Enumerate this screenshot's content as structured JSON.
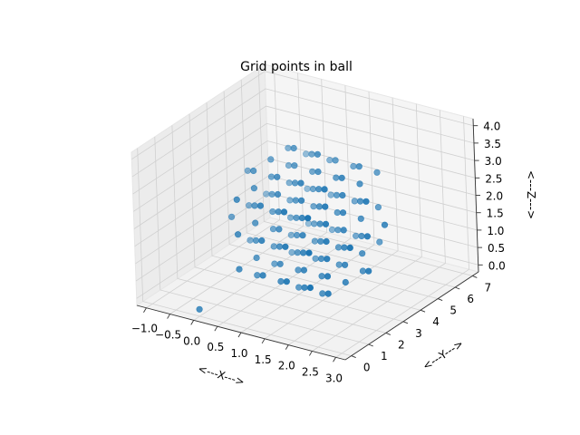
{
  "chart_data": {
    "type": "scatter",
    "projection": "3d",
    "title": "Grid points in ball",
    "xlabel": "<---X--->",
    "ylabel": "<---Y--->",
    "zlabel": "<---Z--->",
    "xlim": [
      -1.2,
      3.2
    ],
    "ylim": [
      -0.35,
      7.35
    ],
    "zlim": [
      -0.2,
      4.2
    ],
    "xticks": [
      "−1.0",
      "−0.5",
      "0.0",
      "0.5",
      "1.0",
      "1.5",
      "2.0",
      "2.5",
      "3.0"
    ],
    "yticks": [
      "0",
      "1",
      "2",
      "3",
      "4",
      "5",
      "6",
      "7"
    ],
    "zticks": [
      "0.0",
      "0.5",
      "1.0",
      "1.5",
      "2.0",
      "2.5",
      "3.0",
      "3.5",
      "4.0"
    ],
    "grid": true,
    "marker_color": "#1f77b4",
    "series": [
      {
        "points": [
          [
            0.0,
            0.0,
            0.0
          ],
          [
            0.0,
            2.0,
            2.0
          ],
          [
            0.0,
            3.0,
            1.0
          ],
          [
            0.0,
            3.0,
            2.0
          ],
          [
            0.0,
            3.0,
            3.0
          ],
          [
            0.0,
            4.0,
            2.0
          ],
          [
            0.5,
            1.0,
            1.0
          ],
          [
            0.5,
            1.0,
            2.0
          ],
          [
            0.5,
            1.0,
            3.0
          ],
          [
            0.5,
            2.0,
            0.5
          ],
          [
            0.5,
            2.0,
            1.0
          ],
          [
            0.5,
            2.0,
            1.5
          ],
          [
            0.5,
            2.0,
            2.0
          ],
          [
            0.5,
            2.0,
            2.5
          ],
          [
            0.5,
            2.0,
            3.0
          ],
          [
            0.5,
            2.0,
            3.5
          ],
          [
            0.5,
            3.0,
            0.5
          ],
          [
            0.5,
            3.0,
            1.0
          ],
          [
            0.5,
            3.0,
            1.5
          ],
          [
            0.5,
            3.0,
            2.0
          ],
          [
            0.5,
            3.0,
            2.5
          ],
          [
            0.5,
            3.0,
            3.0
          ],
          [
            0.5,
            3.0,
            3.5
          ],
          [
            0.5,
            4.0,
            0.5
          ],
          [
            0.5,
            4.0,
            1.0
          ],
          [
            0.5,
            4.0,
            1.5
          ],
          [
            0.5,
            4.0,
            2.0
          ],
          [
            0.5,
            4.0,
            2.5
          ],
          [
            0.5,
            4.0,
            3.0
          ],
          [
            0.5,
            4.0,
            3.5
          ],
          [
            0.5,
            5.0,
            1.0
          ],
          [
            0.5,
            5.0,
            2.0
          ],
          [
            0.5,
            5.0,
            3.0
          ],
          [
            1.0,
            1.0,
            1.0
          ],
          [
            1.0,
            1.0,
            2.0
          ],
          [
            1.0,
            1.0,
            3.0
          ],
          [
            1.0,
            2.0,
            0.5
          ],
          [
            1.0,
            2.0,
            1.0
          ],
          [
            1.0,
            2.0,
            1.5
          ],
          [
            1.0,
            2.0,
            2.0
          ],
          [
            1.0,
            2.0,
            2.5
          ],
          [
            1.0,
            2.0,
            3.0
          ],
          [
            1.0,
            2.0,
            3.5
          ],
          [
            1.0,
            3.0,
            0.0
          ],
          [
            1.0,
            3.0,
            0.5
          ],
          [
            1.0,
            3.0,
            1.0
          ],
          [
            1.0,
            3.0,
            1.5
          ],
          [
            1.0,
            3.0,
            2.0
          ],
          [
            1.0,
            3.0,
            2.5
          ],
          [
            1.0,
            3.0,
            3.0
          ],
          [
            1.0,
            3.0,
            3.5
          ],
          [
            1.0,
            3.0,
            4.0
          ],
          [
            1.0,
            4.0,
            0.5
          ],
          [
            1.0,
            4.0,
            1.0
          ],
          [
            1.0,
            4.0,
            1.5
          ],
          [
            1.0,
            4.0,
            2.0
          ],
          [
            1.0,
            4.0,
            2.5
          ],
          [
            1.0,
            4.0,
            3.0
          ],
          [
            1.0,
            4.0,
            3.5
          ],
          [
            1.0,
            5.0,
            1.0
          ],
          [
            1.0,
            5.0,
            2.0
          ],
          [
            1.0,
            5.0,
            3.0
          ],
          [
            1.5,
            1.0,
            1.0
          ],
          [
            1.5,
            1.0,
            2.0
          ],
          [
            1.5,
            1.0,
            3.0
          ],
          [
            1.5,
            2.0,
            0.5
          ],
          [
            1.5,
            2.0,
            1.0
          ],
          [
            1.5,
            2.0,
            1.5
          ],
          [
            1.5,
            2.0,
            2.0
          ],
          [
            1.5,
            2.0,
            2.5
          ],
          [
            1.5,
            2.0,
            3.0
          ],
          [
            1.5,
            2.0,
            3.5
          ],
          [
            1.5,
            3.0,
            0.0
          ],
          [
            1.5,
            3.0,
            0.5
          ],
          [
            1.5,
            3.0,
            1.0
          ],
          [
            1.5,
            3.0,
            1.5
          ],
          [
            1.5,
            3.0,
            2.0
          ],
          [
            1.5,
            3.0,
            2.5
          ],
          [
            1.5,
            3.0,
            3.0
          ],
          [
            1.5,
            3.0,
            3.5
          ],
          [
            1.5,
            3.0,
            4.0
          ],
          [
            1.5,
            4.0,
            0.5
          ],
          [
            1.5,
            4.0,
            1.0
          ],
          [
            1.5,
            4.0,
            1.5
          ],
          [
            1.5,
            4.0,
            2.0
          ],
          [
            1.5,
            4.0,
            2.5
          ],
          [
            1.5,
            4.0,
            3.0
          ],
          [
            1.5,
            4.0,
            3.5
          ],
          [
            1.5,
            5.0,
            1.0
          ],
          [
            1.5,
            5.0,
            2.0
          ],
          [
            1.5,
            5.0,
            3.0
          ],
          [
            2.0,
            1.0,
            1.0
          ],
          [
            2.0,
            1.0,
            2.0
          ],
          [
            2.0,
            1.0,
            3.0
          ],
          [
            2.0,
            2.0,
            0.5
          ],
          [
            2.0,
            2.0,
            1.0
          ],
          [
            2.0,
            2.0,
            1.5
          ],
          [
            2.0,
            2.0,
            2.0
          ],
          [
            2.0,
            2.0,
            2.5
          ],
          [
            2.0,
            2.0,
            3.0
          ],
          [
            2.0,
            2.0,
            3.5
          ],
          [
            2.0,
            3.0,
            0.5
          ],
          [
            2.0,
            3.0,
            1.0
          ],
          [
            2.0,
            3.0,
            1.5
          ],
          [
            2.0,
            3.0,
            2.0
          ],
          [
            2.0,
            3.0,
            2.5
          ],
          [
            2.0,
            3.0,
            3.0
          ],
          [
            2.0,
            3.0,
            3.5
          ],
          [
            2.0,
            4.0,
            0.5
          ],
          [
            2.0,
            4.0,
            1.0
          ],
          [
            2.0,
            4.0,
            1.5
          ],
          [
            2.0,
            4.0,
            2.0
          ],
          [
            2.0,
            4.0,
            2.5
          ],
          [
            2.0,
            4.0,
            3.0
          ],
          [
            2.0,
            4.0,
            3.5
          ],
          [
            2.0,
            5.0,
            1.0
          ],
          [
            2.0,
            5.0,
            2.0
          ],
          [
            2.0,
            5.0,
            3.0
          ],
          [
            2.5,
            2.0,
            2.0
          ],
          [
            2.5,
            3.0,
            1.0
          ],
          [
            2.5,
            3.0,
            2.0
          ],
          [
            2.5,
            3.0,
            3.0
          ],
          [
            2.5,
            4.0,
            2.0
          ]
        ]
      }
    ]
  }
}
